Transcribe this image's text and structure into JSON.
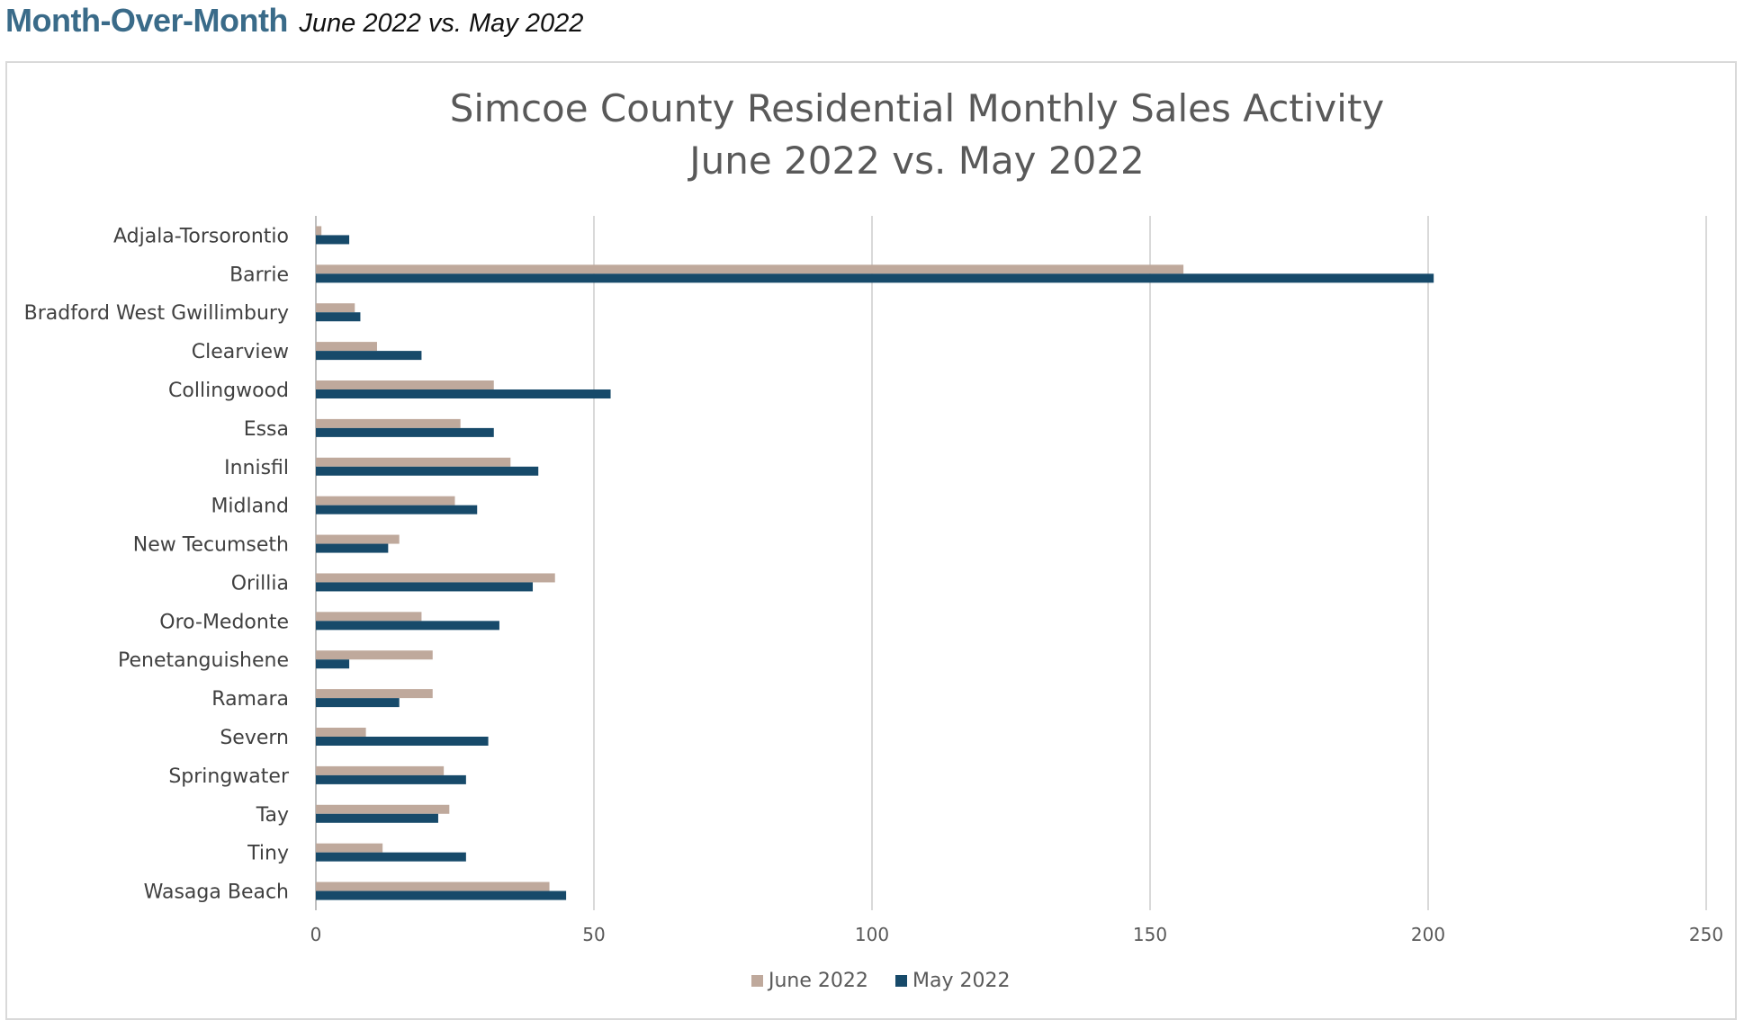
{
  "header": {
    "title": "Month-Over-Month",
    "subtitle": "June 2022 vs. May 2022"
  },
  "chart_data": {
    "type": "bar",
    "orientation": "horizontal",
    "title": "Simcoe County Residential Monthly Sales Activity",
    "subtitle": "June 2022 vs. May 2022",
    "xlabel": "",
    "ylabel": "",
    "xlim": [
      0,
      250
    ],
    "xticks": [
      0,
      50,
      100,
      150,
      200,
      250
    ],
    "grid": true,
    "legend_position": "bottom",
    "categories": [
      "Adjala-Torsorontio",
      "Barrie",
      "Bradford West Gwillimbury",
      "Clearview",
      "Collingwood",
      "Essa",
      "Innisfil",
      "Midland",
      "New Tecumseth",
      "Orillia",
      "Oro-Medonte",
      "Penetanguishene",
      "Ramara",
      "Severn",
      "Springwater",
      "Tay",
      "Tiny",
      "Wasaga Beach"
    ],
    "series": [
      {
        "name": "June 2022",
        "color": "#bfa99c",
        "values": [
          1,
          156,
          7,
          11,
          32,
          26,
          35,
          25,
          15,
          43,
          19,
          21,
          21,
          9,
          23,
          24,
          12,
          42
        ]
      },
      {
        "name": "May 2022",
        "color": "#174a6a",
        "values": [
          6,
          201,
          8,
          19,
          53,
          32,
          40,
          29,
          13,
          39,
          33,
          6,
          15,
          31,
          27,
          22,
          27,
          45
        ]
      }
    ]
  }
}
